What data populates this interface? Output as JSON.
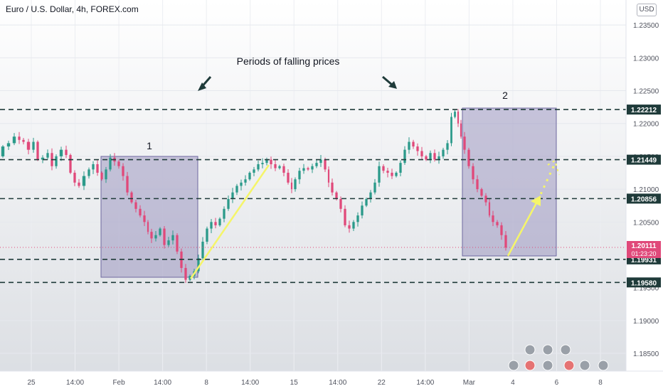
{
  "header": {
    "symbol_title": "Euro / U.S. Dollar, 4h, FOREX.com",
    "currency": "USD"
  },
  "annotations": {
    "headline": "Periods of falling prices",
    "box1_label": "1",
    "box2_label": "2",
    "box_color": "#8c85b5",
    "line_color": "#1f3b3a",
    "arrow_color": "#f5f56a"
  },
  "chart_data": {
    "type": "candlestick",
    "symbol": "Euro / U.S. Dollar",
    "interval": "4h",
    "source": "FOREX.com",
    "ylim": [
      1.1823,
      1.2388
    ],
    "y_ticks": [
      "1.18500",
      "1.19000",
      "1.19500",
      "1.20000",
      "1.20500",
      "1.21000",
      "1.21500",
      "1.22000",
      "1.22500",
      "1.23000",
      "1.23500"
    ],
    "x_ticks": [
      "25",
      "14:00",
      "Feb",
      "14:00",
      "8",
      "14:00",
      "15",
      "14:00",
      "22",
      "14:00",
      "Mar",
      "4",
      "6",
      "8"
    ],
    "horizontal_levels": [
      {
        "price": "1.22212",
        "value": 1.22212
      },
      {
        "price": "1.21449",
        "value": 1.21449
      },
      {
        "price": "1.20856",
        "value": 1.20856
      },
      {
        "price": "1.19931",
        "value": 1.19931
      },
      {
        "price": "1.19580",
        "value": 1.1958
      }
    ],
    "last_price": {
      "price": "1.20111",
      "countdown": "01:23:20",
      "value": 1.20111,
      "color": "#e0497a"
    },
    "up_color": "#2b9a8a",
    "down_color": "#e0497a",
    "path_points": [
      [
        0,
        1.215
      ],
      [
        8,
        1.2165
      ],
      [
        16,
        1.217
      ],
      [
        24,
        1.218
      ],
      [
        30,
        1.2175
      ],
      [
        36,
        1.2172
      ],
      [
        44,
        1.216
      ],
      [
        50,
        1.2172
      ],
      [
        56,
        1.2145
      ],
      [
        64,
        1.2148
      ],
      [
        70,
        1.2155
      ],
      [
        76,
        1.2135
      ],
      [
        82,
        1.215
      ],
      [
        90,
        1.216
      ],
      [
        96,
        1.2152
      ],
      [
        102,
        1.2125
      ],
      [
        108,
        1.211
      ],
      [
        114,
        1.2105
      ],
      [
        122,
        1.212
      ],
      [
        128,
        1.213
      ],
      [
        134,
        1.2138
      ],
      [
        140,
        1.2125
      ],
      [
        146,
        1.2115
      ],
      [
        152,
        1.213
      ],
      [
        158,
        1.2148
      ],
      [
        164,
        1.2142
      ],
      [
        170,
        1.2135
      ],
      [
        176,
        1.212
      ],
      [
        182,
        1.2095
      ],
      [
        188,
        1.208
      ],
      [
        194,
        1.207
      ],
      [
        200,
        1.206
      ],
      [
        206,
        1.205
      ],
      [
        210,
        1.2035
      ],
      [
        216,
        1.2025
      ],
      [
        222,
        1.203
      ],
      [
        228,
        1.204
      ],
      [
        234,
        1.2015
      ],
      [
        240,
        1.2022
      ],
      [
        246,
        1.203
      ],
      [
        252,
        1.2005
      ],
      [
        258,
        1.198
      ],
      [
        264,
        1.1962
      ],
      [
        270,
        1.1968
      ],
      [
        276,
        1.1975
      ],
      [
        282,
        1.1995
      ],
      [
        288,
        1.202
      ],
      [
        294,
        1.204
      ],
      [
        300,
        1.205
      ],
      [
        306,
        1.2045
      ],
      [
        312,
        1.2055
      ],
      [
        318,
        1.207
      ],
      [
        324,
        1.2085
      ],
      [
        330,
        1.2095
      ],
      [
        336,
        1.2105
      ],
      [
        342,
        1.211
      ],
      [
        348,
        1.2115
      ],
      [
        354,
        1.2125
      ],
      [
        360,
        1.213
      ],
      [
        366,
        1.2138
      ],
      [
        372,
        1.214
      ],
      [
        378,
        1.2145
      ],
      [
        384,
        1.2138
      ],
      [
        390,
        1.2132
      ],
      [
        396,
        1.2135
      ],
      [
        402,
        1.2125
      ],
      [
        408,
        1.211
      ],
      [
        412,
        1.21
      ],
      [
        418,
        1.2115
      ],
      [
        424,
        1.2128
      ],
      [
        430,
        1.2132
      ],
      [
        436,
        1.213
      ],
      [
        442,
        1.2135
      ],
      [
        448,
        1.214
      ],
      [
        454,
        1.2145
      ],
      [
        460,
        1.213
      ],
      [
        464,
        1.211
      ],
      [
        470,
        1.2095
      ],
      [
        476,
        1.2085
      ],
      [
        482,
        1.207
      ],
      [
        488,
        1.2045
      ],
      [
        494,
        1.204
      ],
      [
        500,
        1.205
      ],
      [
        506,
        1.206
      ],
      [
        512,
        1.2075
      ],
      [
        518,
        1.2085
      ],
      [
        524,
        1.2095
      ],
      [
        530,
        1.211
      ],
      [
        536,
        1.2135
      ],
      [
        542,
        1.2128
      ],
      [
        548,
        1.2125
      ],
      [
        554,
        1.212
      ],
      [
        560,
        1.2125
      ],
      [
        566,
        1.214
      ],
      [
        572,
        1.216
      ],
      [
        578,
        1.2172
      ],
      [
        584,
        1.2165
      ],
      [
        590,
        1.2158
      ],
      [
        596,
        1.215
      ],
      [
        602,
        1.2145
      ],
      [
        608,
        1.2155
      ],
      [
        614,
        1.2145
      ],
      [
        620,
        1.215
      ],
      [
        626,
        1.216
      ],
      [
        632,
        1.217
      ],
      [
        637,
        1.221
      ],
      [
        642,
        1.2218
      ],
      [
        646,
        1.22
      ],
      [
        650,
        1.218
      ],
      [
        656,
        1.216
      ],
      [
        662,
        1.2135
      ],
      [
        668,
        1.2115
      ],
      [
        674,
        1.21
      ],
      [
        680,
        1.209
      ],
      [
        686,
        1.208
      ],
      [
        690,
        1.206
      ],
      [
        696,
        1.205
      ],
      [
        702,
        1.2045
      ],
      [
        708,
        1.203
      ],
      [
        714,
        1.2011
      ]
    ]
  }
}
